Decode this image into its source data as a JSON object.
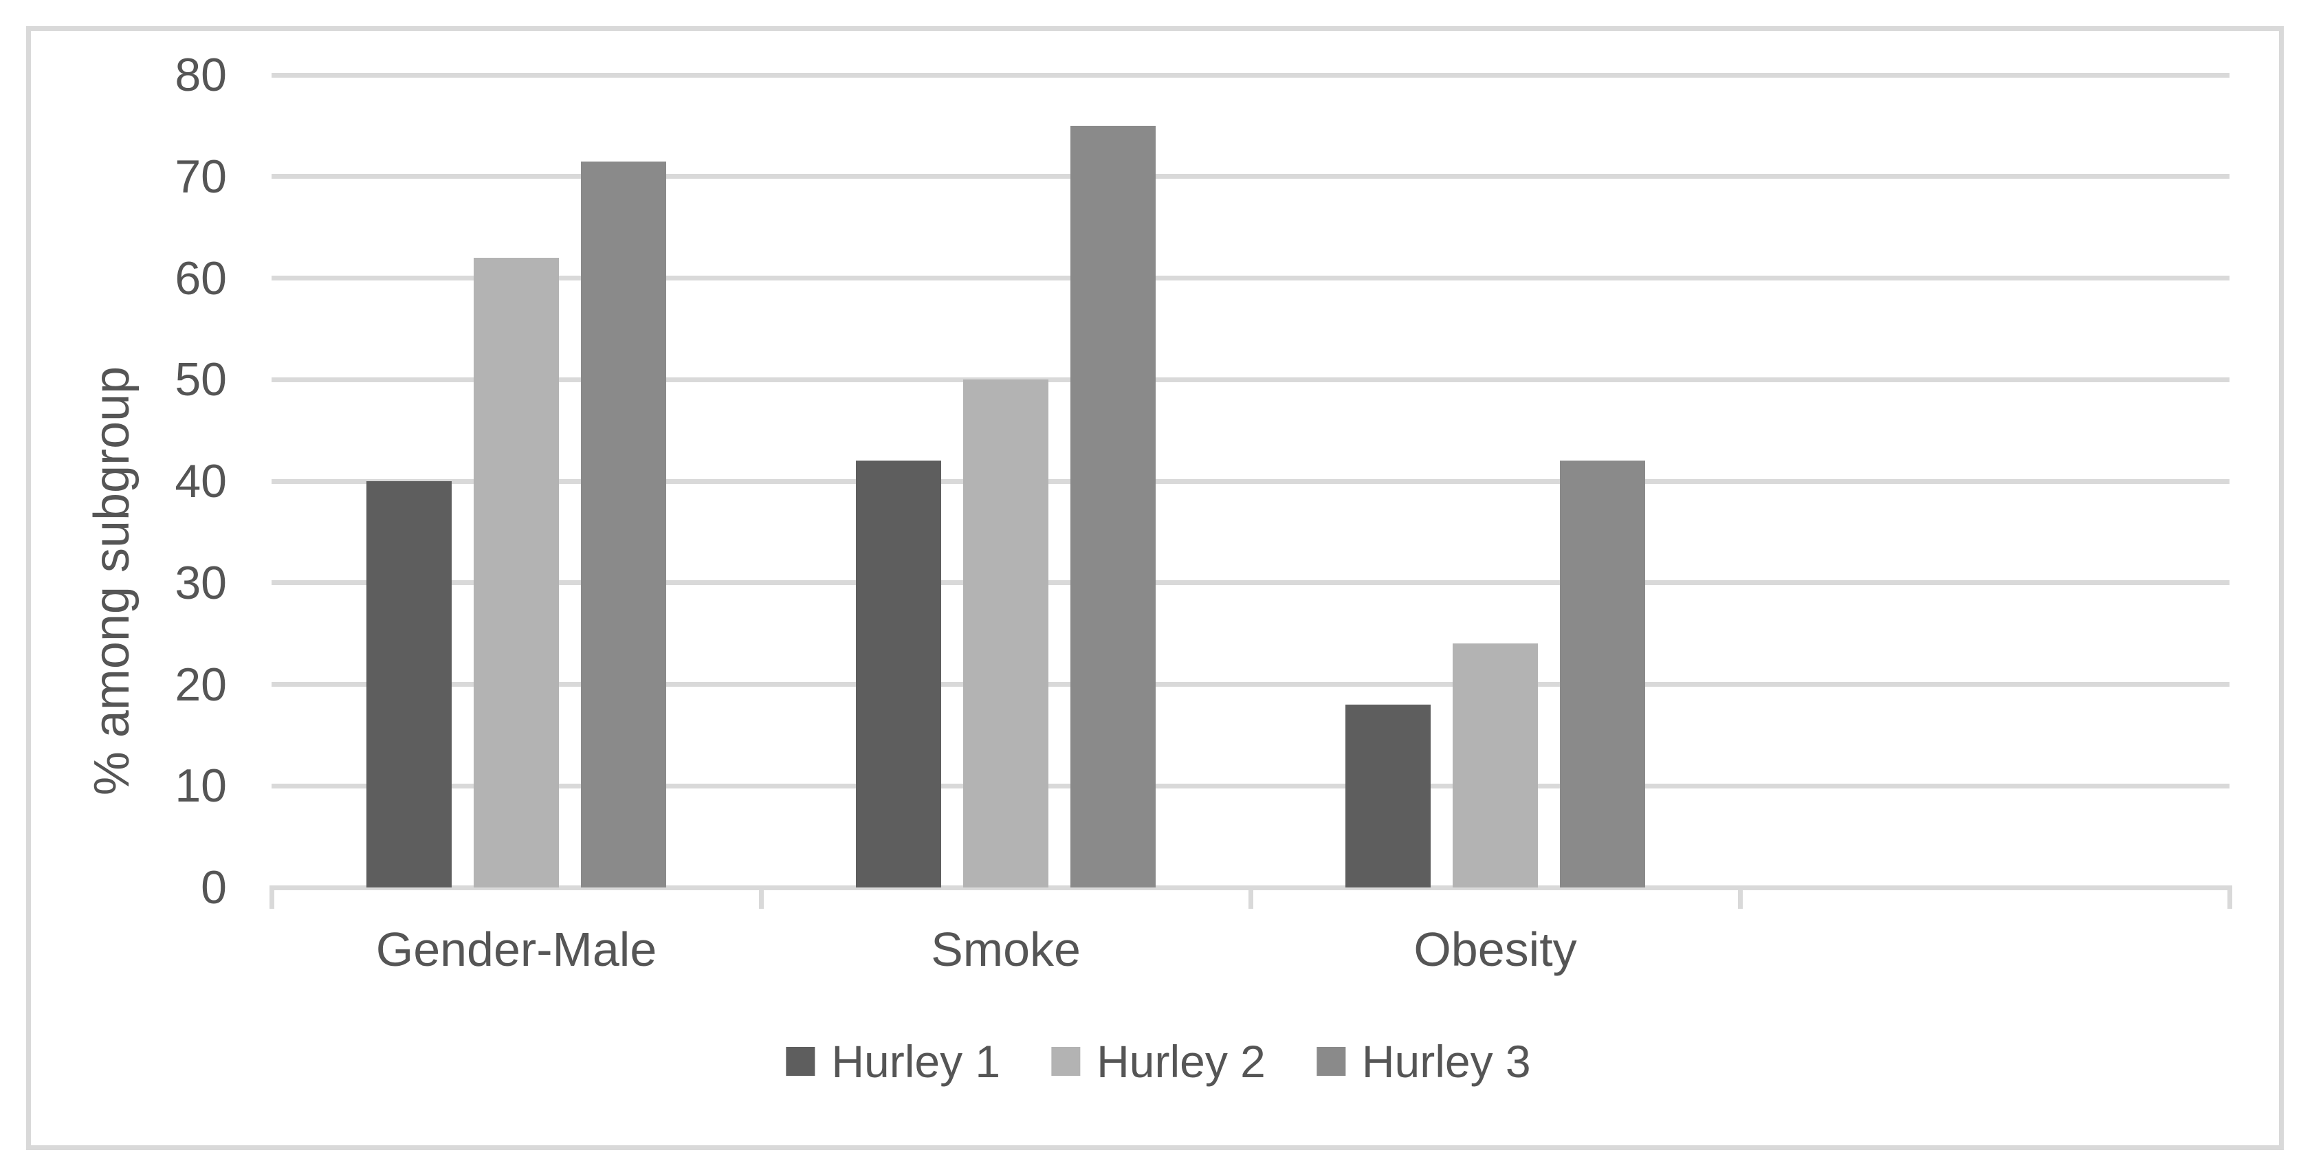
{
  "colors": {
    "background": "#FFFFFF",
    "frame_border": "#D9D9D9",
    "gridline": "#D9D9D9",
    "axis_line": "#D9D9D9",
    "text": "#555555"
  },
  "chart_data": {
    "type": "bar",
    "title": "",
    "xlabel": "",
    "ylabel": "% among subgroup",
    "categories": [
      "Gender-Male",
      "Smoke",
      "Obesity"
    ],
    "series": [
      {
        "name": "Hurley 1",
        "color": "#5E5E5E",
        "values": [
          40,
          42,
          18
        ]
      },
      {
        "name": "Hurley 2",
        "color": "#B3B3B3",
        "values": [
          62,
          50,
          24
        ]
      },
      {
        "name": "Hurley 3",
        "color": "#8A8A8A",
        "values": [
          71.5,
          75,
          42
        ]
      }
    ],
    "ylim": [
      0,
      80
    ],
    "yticks": [
      0,
      10,
      20,
      30,
      40,
      50,
      60,
      70,
      80
    ],
    "grid": true,
    "legend_position": "bottom",
    "x_axis_slots": 4
  }
}
